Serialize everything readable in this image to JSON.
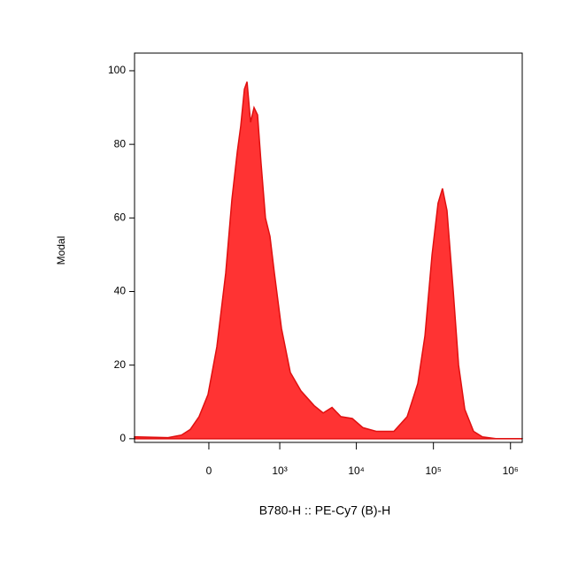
{
  "chart_data": {
    "type": "area",
    "xscale": "biex",
    "x_label": "B780-H :: PE-Cy7 (B)-H",
    "y_label": "Modal",
    "x": [
      -1110,
      -1027,
      -376,
      -223,
      -143,
      -72,
      -6,
      59,
      128,
      182,
      233,
      269,
      310,
      343,
      389,
      439,
      494,
      554,
      639,
      737,
      847,
      1054,
      1381,
      1901,
      2830,
      3710,
      4830,
      6290,
      8860,
      12200,
      18100,
      30700,
      45600,
      62700,
      77600,
      95900,
      115000,
      131000,
      150000,
      181000,
      212000,
      255000,
      332000,
      432000,
      644000,
      1400000
    ],
    "values": [
      0.5,
      0.5,
      0.3,
      1,
      2.5,
      6,
      12,
      25,
      45,
      65,
      78,
      85,
      95,
      97,
      86,
      90,
      88,
      75,
      60,
      55,
      45,
      30,
      18,
      13,
      9,
      7,
      8.5,
      6,
      5.5,
      3,
      2,
      2,
      6,
      15,
      28,
      50,
      64,
      68,
      62,
      40,
      20,
      8,
      2,
      0.5,
      0,
      0
    ],
    "color": "#ff3333",
    "xlim": [
      -1110,
      1420000
    ],
    "xticks": [
      0,
      {
        "value": 1000,
        "label": "10³"
      },
      {
        "value": 10000,
        "label": "10⁴"
      },
      {
        "value": 100000,
        "label": "10⁵"
      },
      {
        "value": 1000000,
        "label": "10⁶"
      }
    ],
    "ylim": [
      -1,
      104.8
    ],
    "yticks": [
      0,
      20,
      40,
      60,
      80,
      100
    ]
  }
}
